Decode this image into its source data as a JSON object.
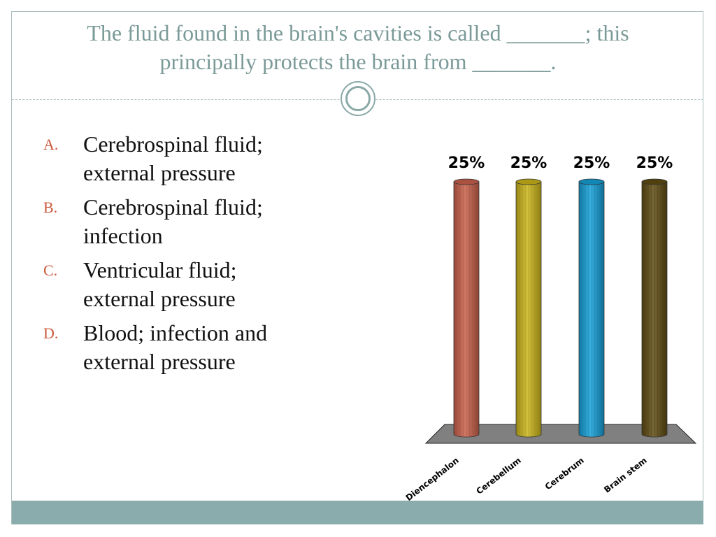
{
  "question": {
    "line1": "The fluid found in the brain's cavities is called _______; this",
    "line2": "principally protects the brain from _______."
  },
  "answers": [
    {
      "letter": "A.",
      "line1": "Cerebrospinal fluid;",
      "line2": "external pressure"
    },
    {
      "letter": "B.",
      "line1": "Cerebrospinal fluid;",
      "line2": "infection"
    },
    {
      "letter": "C.",
      "line1": "Ventricular fluid;",
      "line2": "external pressure"
    },
    {
      "letter": "D.",
      "line1": "Blood; infection and",
      "line2": "external pressure"
    }
  ],
  "colors": {
    "title": "#7a9a98",
    "accent_letters": "#cc5a3e",
    "footer": "#8aacac"
  },
  "chart_data": {
    "type": "bar",
    "style": "3d-cylinder",
    "categories": [
      "Diencephalon",
      "Cerebellum",
      "Cerebrum",
      "Brain stem"
    ],
    "values": [
      25,
      25,
      25,
      25
    ],
    "value_labels": [
      "25%",
      "25%",
      "25%",
      "25%"
    ],
    "colors": [
      "#c8604a",
      "#c9b41a",
      "#159fd6",
      "#5e4b13"
    ],
    "ylim": [
      0,
      25
    ],
    "grid": false,
    "legend": "none"
  }
}
